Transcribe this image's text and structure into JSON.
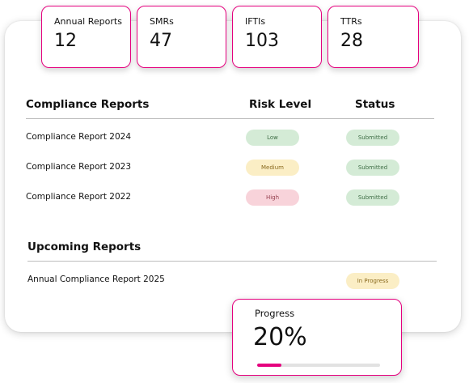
{
  "stats": [
    {
      "label": "Annual Reports",
      "value": "12"
    },
    {
      "label": "SMRs",
      "value": "47"
    },
    {
      "label": "IFTIs",
      "value": "103"
    },
    {
      "label": "TTRs",
      "value": "28"
    }
  ],
  "compliance": {
    "title": "Compliance Reports",
    "risk_header": "Risk Level",
    "status_header": "Status",
    "rows": [
      {
        "name": "Compliance Report 2024",
        "risk": "Low",
        "status": "Submitted"
      },
      {
        "name": "Compliance Report 2023",
        "risk": "Medium",
        "status": "Submitted"
      },
      {
        "name": "Compliance Report 2022",
        "risk": "High",
        "status": "Submitted"
      }
    ]
  },
  "upcoming": {
    "title": "Upcoming Reports",
    "rows": [
      {
        "name": "Annual Compliance Report 2025",
        "status": "In Progress"
      }
    ]
  },
  "progress": {
    "label": "Progress",
    "value_text": "20%",
    "fraction": 0.2
  },
  "colors": {
    "accent": "#e5007e",
    "low_bg": "#d4ebd6",
    "low_text": "#3f6e46",
    "medium_bg": "#fbeec5",
    "medium_text": "#8a6a1e",
    "high_bg": "#f8d3da",
    "high_text": "#96404f",
    "submitted_bg": "#d4ebd6",
    "submitted_text": "#3f6e46",
    "inprogress_bg": "#fbeec5",
    "inprogress_text": "#8a6a1e"
  }
}
